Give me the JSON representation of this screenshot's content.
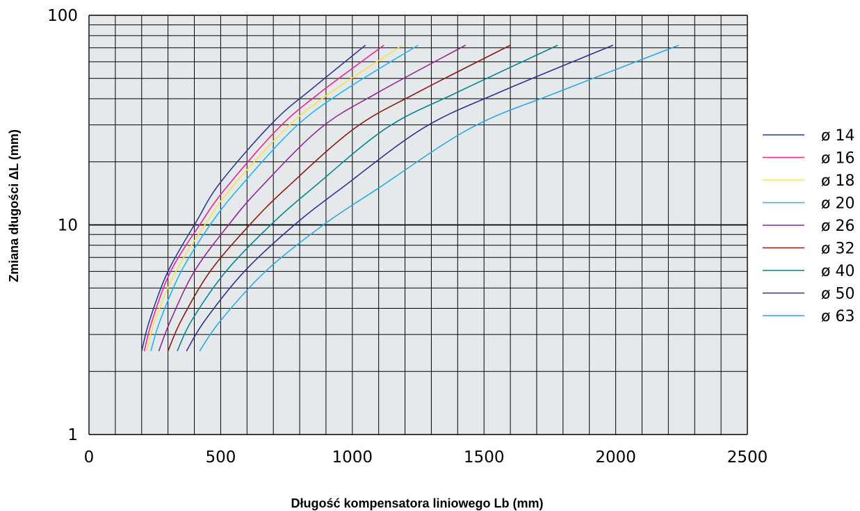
{
  "chart_data": {
    "type": "line",
    "xlabel": "Długość kompensatora liniowego Lb (mm)",
    "ylabel": "Zmiana długości ΔL (mm)",
    "xlim": [
      0,
      2500
    ],
    "ylim": [
      1,
      100
    ],
    "yscale": "log",
    "grid": true,
    "legend_position": "right",
    "x_ticks": [
      0,
      500,
      1000,
      1500,
      2000,
      2500
    ],
    "x_tick_labels": [
      "0",
      "500",
      "1000",
      "1500",
      "2000",
      "2500"
    ],
    "y_ticks": [
      1,
      10,
      100
    ],
    "y_tick_labels": [
      "1",
      "10",
      "100"
    ],
    "series": [
      {
        "name": "ø 14",
        "color": "#2b3990",
        "x": [
          200,
          230,
          300,
          410,
          500,
          700,
          850,
          1050
        ],
        "y": [
          2.5,
          3.5,
          6,
          10.5,
          16,
          31,
          45,
          72
        ]
      },
      {
        "name": "ø 16",
        "color": "#e5278f",
        "x": [
          210,
          240,
          310,
          420,
          520,
          720,
          880,
          1120
        ],
        "y": [
          2.5,
          3.5,
          6,
          10,
          15,
          29,
          43,
          72
        ]
      },
      {
        "name": "ø 18",
        "color": "#f5e447",
        "x": [
          220,
          250,
          330,
          440,
          540,
          750,
          920,
          1190
        ],
        "y": [
          2.5,
          3.5,
          6,
          10,
          15,
          29,
          43,
          72
        ]
      },
      {
        "name": "ø 20",
        "color": "#1fb6ea",
        "x": [
          235,
          270,
          350,
          460,
          570,
          780,
          960,
          1250
        ],
        "y": [
          2.5,
          3.5,
          6,
          10,
          15,
          29,
          43,
          72
        ]
      },
      {
        "name": "ø 26",
        "color": "#92278f",
        "x": [
          265,
          310,
          400,
          530,
          650,
          880,
          1100,
          1430
        ],
        "y": [
          2.5,
          3.5,
          6,
          10,
          15,
          29,
          43,
          72
        ]
      },
      {
        "name": "ø 32",
        "color": "#8b1a10",
        "x": [
          300,
          350,
          460,
          610,
          750,
          1010,
          1250,
          1600
        ],
        "y": [
          2.5,
          3.5,
          6,
          10,
          15,
          29,
          43,
          72
        ]
      },
      {
        "name": "ø 40",
        "color": "#00868b",
        "x": [
          335,
          390,
          520,
          690,
          850,
          1130,
          1400,
          1780
        ],
        "y": [
          2.5,
          3.5,
          6,
          10,
          15,
          29,
          43,
          72
        ]
      },
      {
        "name": "ø 50",
        "color": "#2e3192",
        "x": [
          370,
          440,
          590,
          780,
          960,
          1270,
          1560,
          1990
        ],
        "y": [
          2.5,
          3.5,
          6,
          10,
          15,
          29,
          43,
          72
        ]
      },
      {
        "name": "ø 63",
        "color": "#27aae1",
        "x": [
          420,
          500,
          670,
          890,
          1100,
          1450,
          1780,
          2240
        ],
        "y": [
          2.5,
          3.5,
          6,
          10,
          15,
          29,
          43,
          72
        ]
      }
    ]
  }
}
